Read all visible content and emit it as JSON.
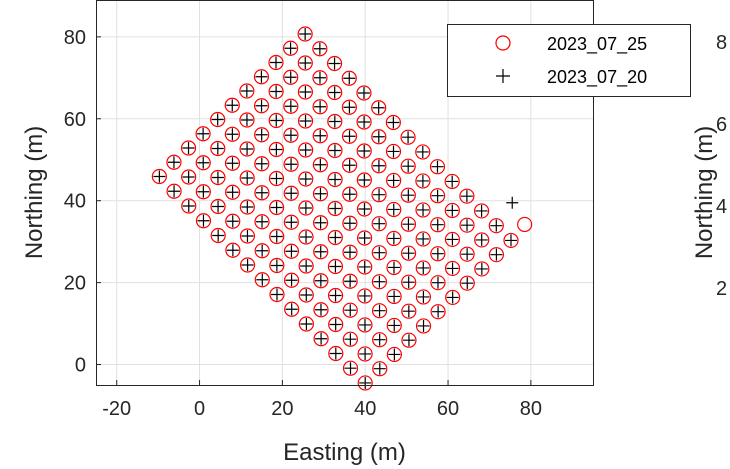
{
  "chart_data": [
    {
      "type": "scatter",
      "title": "",
      "xlabel": "Easting (m)",
      "ylabel": "Northing (m)",
      "xlim": [
        -25,
        95
      ],
      "ylim": [
        -5,
        89
      ],
      "xticks": [
        -20,
        0,
        20,
        40,
        60,
        80
      ],
      "yticks": [
        0,
        20,
        40,
        60,
        80
      ],
      "grid": true,
      "legend_position": "top-right",
      "series": [
        {
          "name": "2023_07_25",
          "marker": "circle",
          "color": "#ff0000",
          "grid_origin": [
            40.0,
            -4.5
          ],
          "row_step": [
            3.52,
            3.48
          ],
          "col_step": [
            -3.55,
            3.6
          ],
          "rows": 11,
          "cols": 15,
          "extra_points": [
            [
              78.5,
              34.2
            ]
          ]
        },
        {
          "name": "2023_07_20",
          "marker": "plus",
          "color": "#000000",
          "grid_origin": [
            40.0,
            -4.5
          ],
          "row_step": [
            3.52,
            3.48
          ],
          "col_step": [
            -3.55,
            3.6
          ],
          "rows": 11,
          "cols": 15,
          "extra_points": [
            [
              75.5,
              39.5
            ]
          ]
        }
      ]
    },
    {
      "type": "scatter",
      "partial": true,
      "ylabel": "Northing (m)",
      "yticks_visible": [
        "8",
        "6",
        "4",
        "2"
      ]
    }
  ]
}
